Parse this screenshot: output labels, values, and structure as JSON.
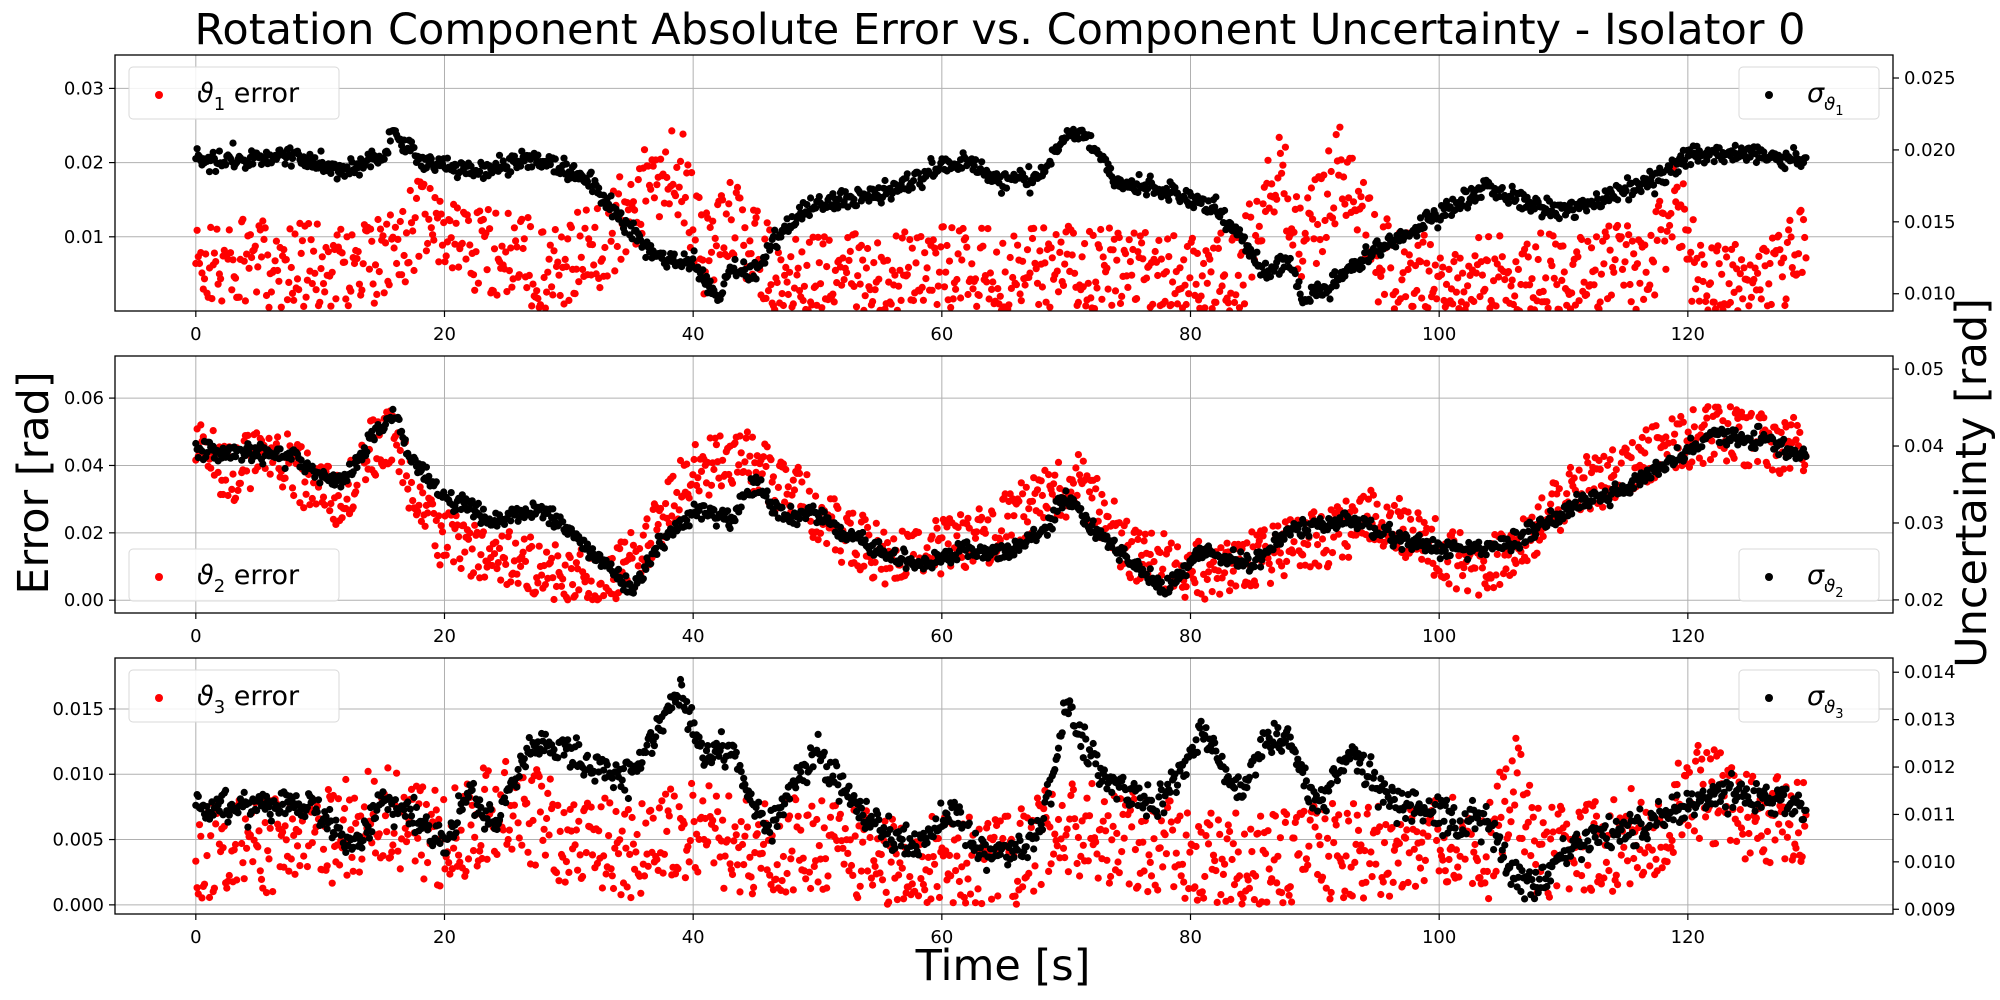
{
  "figure": {
    "title": "Rotation Component Absolute Error vs. Component Uncertainty - Isolator 0",
    "xlabel": "Time [s]",
    "ylabel_left": "Error [rad]",
    "ylabel_right": "Uncertainty [rad]"
  },
  "colors": {
    "error": "#ff0000",
    "uncertainty": "#000000",
    "grid": "#b0b0b0",
    "axes": "#000000"
  },
  "chart_data": [
    {
      "type": "scatter",
      "xlim": [
        -6.5,
        136.5
      ],
      "xticks": [
        0,
        20,
        40,
        60,
        80,
        100,
        120
      ],
      "ylim": [
        0,
        0.0345
      ],
      "yticks": [
        "0.01",
        "0.02",
        "0.03"
      ],
      "ylim_right": [
        0.0088,
        0.0266
      ],
      "yticks_right": [
        "0.010",
        "0.015",
        "0.020",
        "0.025"
      ],
      "grid": true,
      "legend_left": {
        "symbol": "ϑ",
        "sub": "1",
        "suffix": " error",
        "placement": "upper-left"
      },
      "legend_right": {
        "symbol": "σ",
        "sub_symbol": "ϑ",
        "sub": "1",
        "placement": "upper-right"
      },
      "series": [
        {
          "role": "error",
          "axis": "left",
          "keypoints": [
            [
              0,
              0.006
            ],
            [
              5,
              0.0065
            ],
            [
              10,
              0.006
            ],
            [
              15,
              0.0065
            ],
            [
              18,
              0.012
            ],
            [
              22,
              0.009
            ],
            [
              28,
              0.006
            ],
            [
              32,
              0.008
            ],
            [
              36,
              0.016
            ],
            [
              39,
              0.019
            ],
            [
              41,
              0.007
            ],
            [
              43,
              0.013
            ],
            [
              45,
              0.008
            ],
            [
              47,
              0.004
            ],
            [
              55,
              0.005
            ],
            [
              60,
              0.006
            ],
            [
              65,
              0.005
            ],
            [
              70,
              0.006
            ],
            [
              75,
              0.005
            ],
            [
              80,
              0.004
            ],
            [
              84,
              0.005
            ],
            [
              87,
              0.02
            ],
            [
              89,
              0.008
            ],
            [
              92,
              0.019
            ],
            [
              95,
              0.007
            ],
            [
              100,
              0.004
            ],
            [
              110,
              0.005
            ],
            [
              117,
              0.006
            ],
            [
              119,
              0.015
            ],
            [
              121,
              0.003
            ],
            [
              125,
              0.003
            ],
            [
              129,
              0.008
            ]
          ],
          "spread": 0.006
        },
        {
          "role": "uncertainty",
          "axis": "right",
          "keypoints": [
            [
              0,
              0.0193
            ],
            [
              5,
              0.0195
            ],
            [
              8,
              0.0195
            ],
            [
              12,
              0.0185
            ],
            [
              15,
              0.0197
            ],
            [
              16,
              0.0212
            ],
            [
              18,
              0.0193
            ],
            [
              22,
              0.0185
            ],
            [
              26,
              0.0192
            ],
            [
              28,
              0.0195
            ],
            [
              32,
              0.0175
            ],
            [
              35,
              0.0143
            ],
            [
              37,
              0.0128
            ],
            [
              40,
              0.0122
            ],
            [
              42,
              0.0095
            ],
            [
              43,
              0.0118
            ],
            [
              45,
              0.0115
            ],
            [
              47,
              0.0145
            ],
            [
              50,
              0.0163
            ],
            [
              55,
              0.0168
            ],
            [
              60,
              0.0188
            ],
            [
              62,
              0.0192
            ],
            [
              65,
              0.0178
            ],
            [
              68,
              0.0182
            ],
            [
              70,
              0.0212
            ],
            [
              72,
              0.0208
            ],
            [
              74,
              0.0178
            ],
            [
              78,
              0.017
            ],
            [
              82,
              0.016
            ],
            [
              85,
              0.0128
            ],
            [
              86,
              0.0112
            ],
            [
              88,
              0.0125
            ],
            [
              89,
              0.0095
            ],
            [
              91,
              0.0105
            ],
            [
              95,
              0.013
            ],
            [
              100,
              0.0155
            ],
            [
              104,
              0.0175
            ],
            [
              107,
              0.0163
            ],
            [
              110,
              0.0158
            ],
            [
              113,
              0.0165
            ],
            [
              118,
              0.0182
            ],
            [
              120,
              0.0195
            ],
            [
              125,
              0.0198
            ],
            [
              129,
              0.0192
            ]
          ],
          "spread": 0.0007
        }
      ]
    },
    {
      "type": "scatter",
      "xlim": [
        -6.5,
        136.5
      ],
      "xticks": [
        0,
        20,
        40,
        60,
        80,
        100,
        120
      ],
      "ylim": [
        -0.0038,
        0.0725
      ],
      "yticks": [
        "0.00",
        "0.02",
        "0.04",
        "0.06"
      ],
      "ylim_right": [
        0.0183,
        0.0517
      ],
      "yticks_right": [
        "0.02",
        "0.03",
        "0.04",
        "0.05"
      ],
      "grid": true,
      "legend_left": {
        "symbol": "ϑ",
        "sub": "2",
        "suffix": " error",
        "placement": "lower-left"
      },
      "legend_right": {
        "symbol": "σ",
        "sub_symbol": "ϑ",
        "sub": "2",
        "placement": "lower-right"
      },
      "series": [
        {
          "role": "error",
          "axis": "left",
          "keypoints": [
            [
              0,
              0.045
            ],
            [
              3,
              0.038
            ],
            [
              6,
              0.045
            ],
            [
              9,
              0.035
            ],
            [
              12,
              0.03
            ],
            [
              14,
              0.045
            ],
            [
              16,
              0.05
            ],
            [
              18,
              0.025
            ],
            [
              20,
              0.018
            ],
            [
              25,
              0.012
            ],
            [
              30,
              0.008
            ],
            [
              33,
              0.005
            ],
            [
              36,
              0.015
            ],
            [
              38,
              0.028
            ],
            [
              40,
              0.038
            ],
            [
              44,
              0.042
            ],
            [
              48,
              0.032
            ],
            [
              52,
              0.02
            ],
            [
              56,
              0.012
            ],
            [
              60,
              0.015
            ],
            [
              64,
              0.02
            ],
            [
              68,
              0.03
            ],
            [
              71,
              0.035
            ],
            [
              75,
              0.015
            ],
            [
              80,
              0.008
            ],
            [
              85,
              0.012
            ],
            [
              88,
              0.015
            ],
            [
              92,
              0.02
            ],
            [
              95,
              0.025
            ],
            [
              100,
              0.015
            ],
            [
              103,
              0.008
            ],
            [
              106,
              0.015
            ],
            [
              110,
              0.03
            ],
            [
              114,
              0.038
            ],
            [
              118,
              0.045
            ],
            [
              122,
              0.05
            ],
            [
              126,
              0.048
            ],
            [
              129,
              0.045
            ]
          ],
          "spread": 0.009
        },
        {
          "role": "uncertainty",
          "axis": "right",
          "keypoints": [
            [
              0,
              0.0395
            ],
            [
              5,
              0.039
            ],
            [
              8,
              0.0385
            ],
            [
              10,
              0.036
            ],
            [
              12,
              0.0355
            ],
            [
              14,
              0.041
            ],
            [
              16,
              0.044
            ],
            [
              17,
              0.039
            ],
            [
              20,
              0.0335
            ],
            [
              24,
              0.0305
            ],
            [
              28,
              0.0315
            ],
            [
              31,
              0.0275
            ],
            [
              35,
              0.0213
            ],
            [
              37,
              0.0265
            ],
            [
              40,
              0.0315
            ],
            [
              43,
              0.0305
            ],
            [
              45,
              0.0355
            ],
            [
              47,
              0.031
            ],
            [
              50,
              0.031
            ],
            [
              53,
              0.028
            ],
            [
              58,
              0.0245
            ],
            [
              62,
              0.0265
            ],
            [
              65,
              0.026
            ],
            [
              68,
              0.0285
            ],
            [
              70,
              0.0335
            ],
            [
              72,
              0.0295
            ],
            [
              75,
              0.0255
            ],
            [
              78,
              0.0213
            ],
            [
              81,
              0.0265
            ],
            [
              85,
              0.0245
            ],
            [
              88,
              0.029
            ],
            [
              93,
              0.0305
            ],
            [
              97,
              0.0275
            ],
            [
              102,
              0.0265
            ],
            [
              106,
              0.0275
            ],
            [
              110,
              0.0315
            ],
            [
              115,
              0.0345
            ],
            [
              118,
              0.0375
            ],
            [
              122,
              0.0415
            ],
            [
              126,
              0.041
            ],
            [
              129,
              0.039
            ]
          ],
          "spread": 0.0012
        }
      ]
    },
    {
      "type": "scatter",
      "xlim": [
        -6.5,
        136.5
      ],
      "xticks": [
        0,
        20,
        40,
        60,
        80,
        100,
        120
      ],
      "ylim": [
        -0.0007,
        0.0189
      ],
      "yticks": [
        "0.000",
        "0.005",
        "0.010",
        "0.015"
      ],
      "ylim_right": [
        0.0089,
        0.0143
      ],
      "yticks_right": [
        "0.009",
        "0.010",
        "0.011",
        "0.012",
        "0.013",
        "0.014"
      ],
      "grid": true,
      "legend_left": {
        "symbol": "ϑ",
        "sub": "3",
        "suffix": " error",
        "placement": "upper-left"
      },
      "legend_right": {
        "symbol": "σ",
        "sub_symbol": "ϑ",
        "sub": "3",
        "placement": "upper-right"
      },
      "series": [
        {
          "role": "error",
          "axis": "left",
          "keypoints": [
            [
              0,
              0.004
            ],
            [
              10,
              0.005
            ],
            [
              15,
              0.007
            ],
            [
              20,
              0.005
            ],
            [
              25,
              0.008
            ],
            [
              30,
              0.005
            ],
            [
              35,
              0.004
            ],
            [
              40,
              0.006
            ],
            [
              45,
              0.004
            ],
            [
              50,
              0.005
            ],
            [
              55,
              0.003
            ],
            [
              60,
              0.003
            ],
            [
              65,
              0.003
            ],
            [
              70,
              0.006
            ],
            [
              75,
              0.005
            ],
            [
              80,
              0.004
            ],
            [
              85,
              0.003
            ],
            [
              88,
              0.004
            ],
            [
              92,
              0.004
            ],
            [
              96,
              0.004
            ],
            [
              100,
              0.005
            ],
            [
              104,
              0.004
            ],
            [
              106,
              0.01
            ],
            [
              108,
              0.004
            ],
            [
              112,
              0.004
            ],
            [
              118,
              0.006
            ],
            [
              120,
              0.009
            ],
            [
              125,
              0.007
            ],
            [
              129,
              0.006
            ]
          ],
          "spread": 0.0038
        },
        {
          "role": "uncertainty",
          "axis": "right",
          "keypoints": [
            [
              0,
              0.0112
            ],
            [
              5,
              0.0112
            ],
            [
              9,
              0.0113
            ],
            [
              11,
              0.0107
            ],
            [
              13,
              0.0104
            ],
            [
              15,
              0.0113
            ],
            [
              18,
              0.0109
            ],
            [
              20,
              0.0104
            ],
            [
              22,
              0.0115
            ],
            [
              24,
              0.0107
            ],
            [
              27,
              0.0126
            ],
            [
              29,
              0.0124
            ],
            [
              31,
              0.0121
            ],
            [
              35,
              0.0118
            ],
            [
              37,
              0.0128
            ],
            [
              39,
              0.0135
            ],
            [
              41,
              0.0122
            ],
            [
              43,
              0.0124
            ],
            [
              46,
              0.0106
            ],
            [
              48,
              0.0116
            ],
            [
              50,
              0.0123
            ],
            [
              53,
              0.0112
            ],
            [
              56,
              0.0105
            ],
            [
              58,
              0.0104
            ],
            [
              61,
              0.0111
            ],
            [
              63,
              0.0102
            ],
            [
              66,
              0.0102
            ],
            [
              68,
              0.0107
            ],
            [
              70,
              0.0133
            ],
            [
              72,
              0.0122
            ],
            [
              74,
              0.0116
            ],
            [
              77,
              0.0112
            ],
            [
              79,
              0.0118
            ],
            [
              81,
              0.0128
            ],
            [
              83,
              0.0118
            ],
            [
              84,
              0.0114
            ],
            [
              86,
              0.0126
            ],
            [
              88,
              0.0125
            ],
            [
              90,
              0.0112
            ],
            [
              93,
              0.0123
            ],
            [
              96,
              0.0113
            ],
            [
              99,
              0.0111
            ],
            [
              102,
              0.0108
            ],
            [
              104,
              0.0109
            ],
            [
              106,
              0.0097
            ],
            [
              108,
              0.0095
            ],
            [
              110,
              0.0103
            ],
            [
              114,
              0.0106
            ],
            [
              116,
              0.0107
            ],
            [
              120,
              0.0112
            ],
            [
              124,
              0.0115
            ],
            [
              129,
              0.0111
            ]
          ],
          "spread": 0.00035
        }
      ]
    }
  ]
}
